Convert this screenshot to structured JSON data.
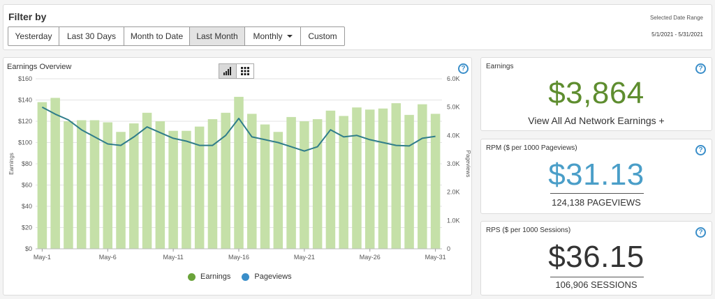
{
  "filter": {
    "title": "Filter by",
    "buttons": [
      {
        "label": "Yesterday",
        "active": false
      },
      {
        "label": "Last 30 Days",
        "active": false
      },
      {
        "label": "Month to Date",
        "active": false
      },
      {
        "label": "Last Month",
        "active": true
      },
      {
        "label": "Monthly",
        "active": false
      },
      {
        "label": "Custom",
        "active": false
      }
    ],
    "range_label": "Selected Date Range",
    "range_value": "5/1/2021 - 5/31/2021"
  },
  "chart_panel": {
    "title": "Earnings Overview",
    "toggle_icons": [
      "bar-chart-icon",
      "grid-icon"
    ],
    "help_icon": "question-circle-icon"
  },
  "colors": {
    "bar": "#c5e0a8",
    "line": "#2f7d8a",
    "earnings_value": "#5e8d2f",
    "rpm_value": "#4a9ec8",
    "rps_value": "#333333",
    "legend_earnings": "#6aa33a",
    "legend_pageviews": "#3a8ec9"
  },
  "chart_data": {
    "type": "bar",
    "categories": [
      "May-1",
      "May-2",
      "May-3",
      "May-4",
      "May-5",
      "May-6",
      "May-7",
      "May-8",
      "May-9",
      "May-10",
      "May-11",
      "May-12",
      "May-13",
      "May-14",
      "May-15",
      "May-16",
      "May-17",
      "May-18",
      "May-19",
      "May-20",
      "May-21",
      "May-22",
      "May-23",
      "May-24",
      "May-25",
      "May-26",
      "May-27",
      "May-28",
      "May-29",
      "May-30",
      "May-31"
    ],
    "x_tick_labels": [
      "May-1",
      "May-6",
      "May-11",
      "May-16",
      "May-21",
      "May-26",
      "May-31"
    ],
    "y_ticks": [
      "$0",
      "$20",
      "$40",
      "$60",
      "$80",
      "$100",
      "$120",
      "$140",
      "$160"
    ],
    "y2_ticks": [
      "0",
      "1.0K",
      "2.0K",
      "3.0K",
      "4.0K",
      "5.0K",
      "6.0K"
    ],
    "ylabel": "Earnings",
    "y2label": "Pageviews",
    "ylim": [
      0,
      160
    ],
    "y2lim": [
      0,
      6000
    ],
    "series": [
      {
        "name": "Earnings",
        "type": "bar",
        "values": [
          138,
          142,
          120,
          121,
          121,
          119,
          110,
          118,
          128,
          120,
          111,
          111,
          115,
          122,
          128,
          143,
          127,
          117,
          110,
          124,
          120,
          122,
          130,
          125,
          133,
          131,
          132,
          137,
          126,
          136,
          127
        ]
      },
      {
        "name": "Pageviews",
        "type": "line",
        "axis": "right",
        "values": [
          5000,
          4750,
          4550,
          4200,
          3950,
          3700,
          3650,
          3950,
          4300,
          4100,
          3900,
          3800,
          3650,
          3650,
          4000,
          4600,
          3950,
          3850,
          3750,
          3600,
          3450,
          3600,
          4200,
          3950,
          4000,
          3850,
          3750,
          3650,
          3630,
          3900,
          3970
        ]
      }
    ],
    "grid": true,
    "legend": "bottom-center"
  },
  "cards": {
    "earnings": {
      "title": "Earnings",
      "value": "$3,864",
      "link": "View All Ad Network Earnings +"
    },
    "rpm": {
      "title": "RPM ($ per 1000 Pageviews)",
      "value": "$31.13",
      "sub": "124,138 PAGEVIEWS"
    },
    "rps": {
      "title": "RPS ($ per 1000 Sessions)",
      "value": "$36.15",
      "sub": "106,906 SESSIONS"
    }
  }
}
